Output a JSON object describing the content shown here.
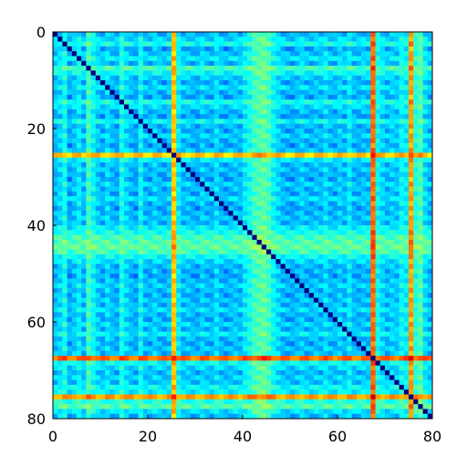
{
  "chart_data": {
    "type": "heatmap",
    "title": "",
    "xlabel": "",
    "ylabel": "",
    "size": 80,
    "xlim": [
      0,
      80
    ],
    "ylim": [
      0,
      80
    ],
    "y_axis_direction": "top-to-bottom",
    "colormap": "jet",
    "grid": false,
    "legend": "none",
    "x_ticks": [
      {
        "value": 0,
        "label": "0"
      },
      {
        "value": 20,
        "label": "20"
      },
      {
        "value": 40,
        "label": "40"
      },
      {
        "value": 60,
        "label": "60"
      },
      {
        "value": 80,
        "label": "80"
      }
    ],
    "y_ticks": [
      {
        "value": 0,
        "label": "0"
      },
      {
        "value": 20,
        "label": "20"
      },
      {
        "value": 40,
        "label": "40"
      },
      {
        "value": 60,
        "label": "60"
      },
      {
        "value": 80,
        "label": "80"
      }
    ],
    "row_profile_0_to_1": [
      0.3,
      0.35,
      0.42,
      0.25,
      0.32,
      0.38,
      0.3,
      0.48,
      0.4,
      0.33,
      0.28,
      0.36,
      0.3,
      0.26,
      0.42,
      0.35,
      0.3,
      0.24,
      0.4,
      0.3,
      0.28,
      0.34,
      0.3,
      0.26,
      0.32,
      0.8,
      0.38,
      0.3,
      0.32,
      0.28,
      0.26,
      0.34,
      0.3,
      0.28,
      0.36,
      0.3,
      0.26,
      0.3,
      0.32,
      0.3,
      0.38,
      0.42,
      0.48,
      0.5,
      0.52,
      0.48,
      0.4,
      0.35,
      0.3,
      0.28,
      0.25,
      0.3,
      0.34,
      0.3,
      0.28,
      0.32,
      0.3,
      0.36,
      0.3,
      0.28,
      0.34,
      0.3,
      0.38,
      0.3,
      0.28,
      0.32,
      0.3,
      0.92,
      0.4,
      0.35,
      0.3,
      0.34,
      0.32,
      0.4,
      0.38,
      0.85,
      0.44,
      0.5,
      0.36,
      0.3
    ],
    "diagonal_value": 0.0
  }
}
